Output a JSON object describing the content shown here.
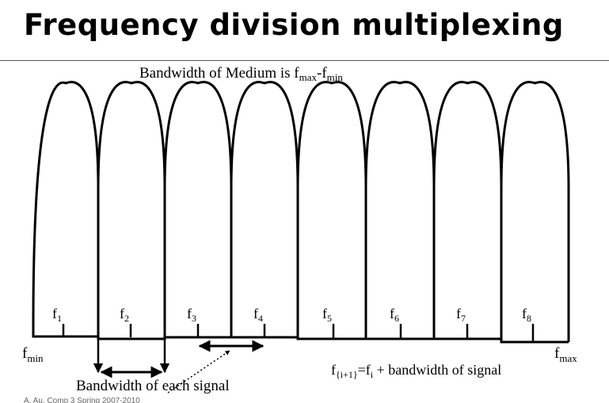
{
  "slide": {
    "title": "Frequency division multiplexing",
    "footer": "A. Au, Comp 3 Spring 2007-2010"
  },
  "diagram": {
    "top_label": {
      "text": "Bandwidth of Medium is f",
      "sub1": "max",
      "mid": "-f",
      "sub2": "min"
    },
    "fmin": {
      "base": "f",
      "sub": "min"
    },
    "fmax": {
      "base": "f",
      "sub": "max"
    },
    "channels": [
      {
        "base": "f",
        "sub": "1"
      },
      {
        "base": "f",
        "sub": "2"
      },
      {
        "base": "f",
        "sub": "3"
      },
      {
        "base": "f",
        "sub": "4"
      },
      {
        "base": "f",
        "sub": "5"
      },
      {
        "base": "f",
        "sub": "6"
      },
      {
        "base": "f",
        "sub": "7"
      },
      {
        "base": "f",
        "sub": "8"
      }
    ],
    "formula": {
      "f1": "f",
      "s1": "{i+1}",
      "eq": "=f",
      "s2": "i",
      "rest": " + bandwidth of signal"
    },
    "bandwidth_label": "Bandwidth of each signal"
  }
}
